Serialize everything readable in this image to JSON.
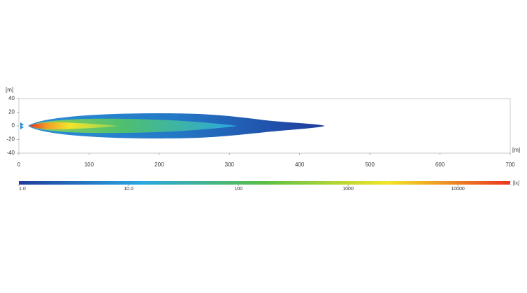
{
  "chart_data": {
    "type": "contour",
    "x_unit": "[m]",
    "y_unit": "[m]",
    "xlim": [
      0,
      700
    ],
    "xticks": [
      0,
      100,
      200,
      300,
      400,
      500,
      600,
      700
    ],
    "ylim": [
      -40,
      40
    ],
    "yticks": [
      40,
      20,
      0,
      -20,
      -40
    ],
    "colorbar": {
      "unit": "[lx]",
      "log_scale": true,
      "lim": [
        1,
        30000
      ],
      "ticks": [
        {
          "value": 1,
          "label": "1.0"
        },
        {
          "value": 10,
          "label": "10.0"
        },
        100,
        1000,
        10000
      ],
      "colormap": [
        "#1f3c9c",
        "#2aa7e0",
        "#5bbf45",
        "#f2e52a",
        "#e8351f"
      ]
    }
  }
}
